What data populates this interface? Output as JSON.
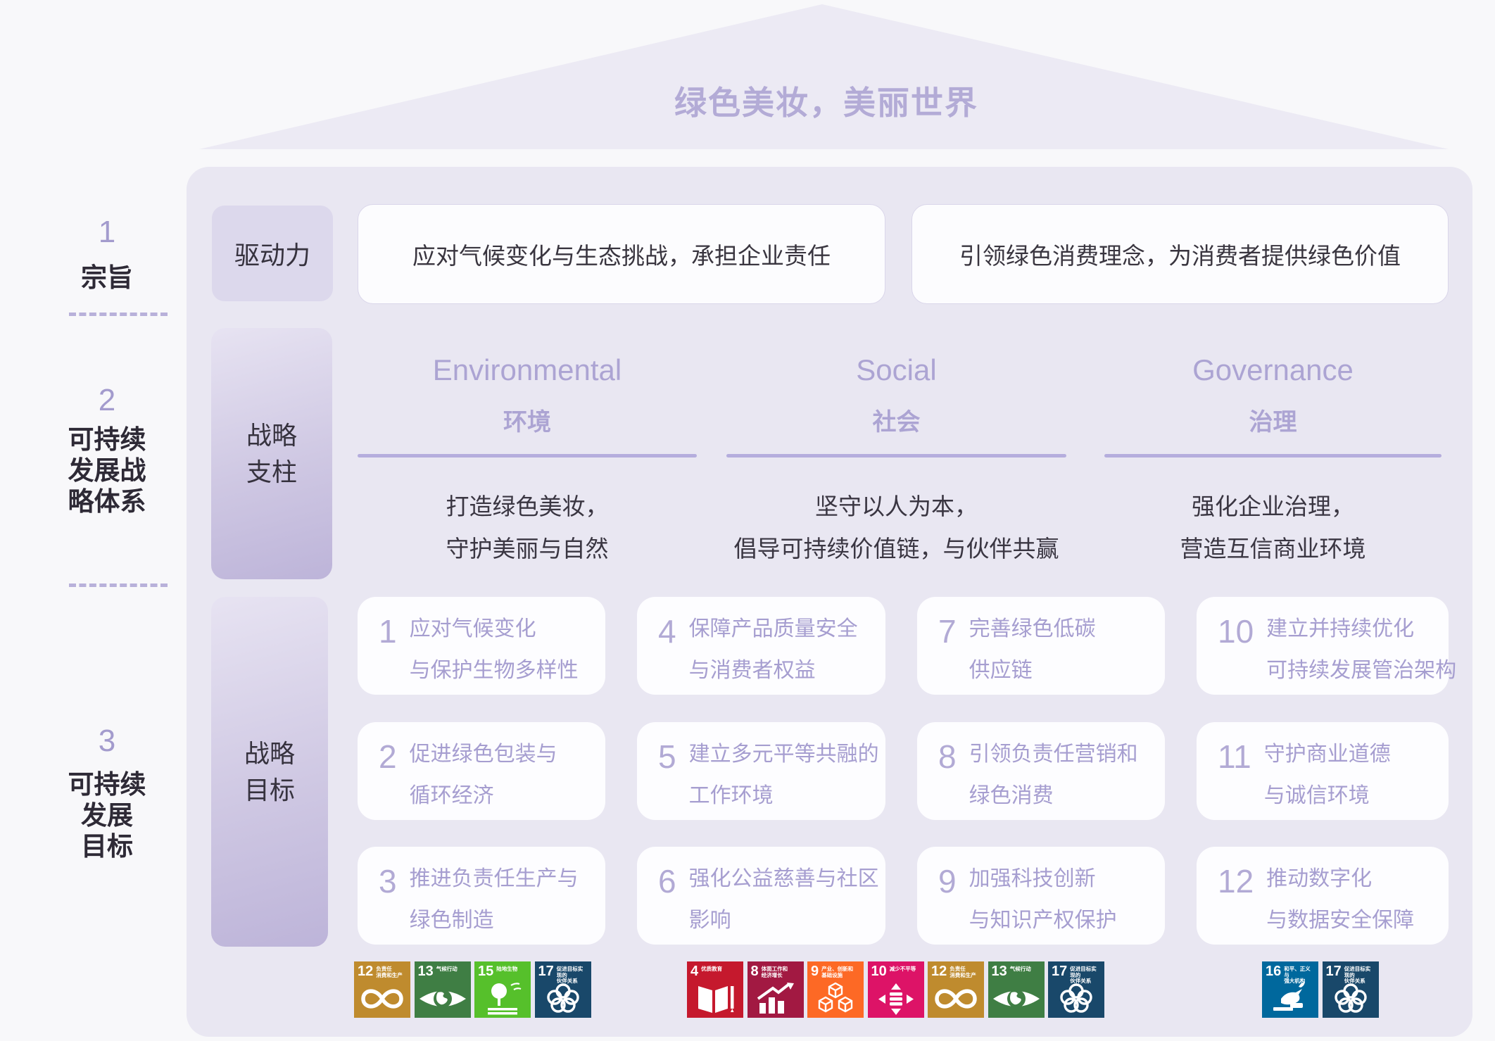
{
  "title": "绿色美妆，美丽世界",
  "colors": {
    "page_bg": "#F8F8FA",
    "roof_bg": "#ECEAF4",
    "panel_bg": "#E9E7F2",
    "label_box_bg": "#DCD8EC",
    "gradient_box_bottom": "#BDB4D9",
    "card_bg": "#FCFCFE",
    "accent_purple": "#ACA4D3",
    "dark_text": "#39353F"
  },
  "rail": {
    "sections": [
      {
        "num": "1",
        "label_lines": [
          "宗旨"
        ]
      },
      {
        "num": "2",
        "label_lines": [
          "可持续",
          "发展战",
          "略体系"
        ]
      },
      {
        "num": "3",
        "label_lines": [
          "可持续",
          "发展",
          "目标"
        ]
      }
    ]
  },
  "driver": {
    "label": "驱动力",
    "cards": [
      "应对气候变化与生态挑战，承担企业责任",
      "引领绿色消费理念，为消费者提供绿色价值"
    ]
  },
  "pillars": {
    "label_lines": [
      "战略",
      "支柱"
    ],
    "columns": [
      {
        "en": "Environmental",
        "zh": "环境",
        "desc_lines": [
          "打造绿色美妆，",
          "守护美丽与自然"
        ]
      },
      {
        "en": "Social",
        "zh": "社会",
        "desc_lines": [
          "坚守以人为本，",
          "倡导可持续价值链，与伙伴共赢"
        ]
      },
      {
        "en": "Governance",
        "zh": "治理",
        "desc_lines": [
          "强化企业治理，",
          "营造互信商业环境"
        ]
      }
    ]
  },
  "goals": {
    "label_lines": [
      "战略",
      "目标"
    ],
    "items": [
      {
        "num": "1",
        "lines": [
          "应对气候变化",
          "与保护生物多样性"
        ]
      },
      {
        "num": "2",
        "lines": [
          "促进绿色包装与",
          "循环经济"
        ]
      },
      {
        "num": "3",
        "lines": [
          "推进负责任生产与",
          "绿色制造"
        ]
      },
      {
        "num": "4",
        "lines": [
          "保障产品质量安全",
          "与消费者权益"
        ]
      },
      {
        "num": "5",
        "lines": [
          "建立多元平等共融的",
          "工作环境"
        ]
      },
      {
        "num": "6",
        "lines": [
          "强化公益慈善与社区",
          "影响"
        ]
      },
      {
        "num": "7",
        "lines": [
          "完善绿色低碳",
          "供应链"
        ]
      },
      {
        "num": "8",
        "lines": [
          "引领负责任营销和",
          "绿色消费"
        ]
      },
      {
        "num": "9",
        "lines": [
          "加强科技创新",
          "与知识产权保护"
        ]
      },
      {
        "num": "10",
        "lines": [
          "建立并持续优化",
          "可持续发展管治架构"
        ]
      },
      {
        "num": "11",
        "lines": [
          "守护商业道德",
          "与诚信环境"
        ]
      },
      {
        "num": "12",
        "lines": [
          "推动数字化",
          "与数据安全保障"
        ]
      }
    ]
  },
  "sdg": {
    "groups": [
      {
        "name": "environmental-sdgs",
        "icons": [
          {
            "num": "12",
            "label_lines": [
              "负责任",
              "消费和生产"
            ],
            "color": "#BF8B2E",
            "icon": "infinity-loop-icon"
          },
          {
            "num": "13",
            "label_lines": [
              "气候行动"
            ],
            "color": "#3F7E44",
            "icon": "eye-globe-icon"
          },
          {
            "num": "15",
            "label_lines": [
              "陆地生物"
            ],
            "color": "#56C02B",
            "icon": "tree-icon"
          },
          {
            "num": "17",
            "label_lines": [
              "促进目标实现的",
              "伙伴关系"
            ],
            "color": "#19486A",
            "icon": "rings-icon"
          }
        ]
      },
      {
        "name": "social-sdgs",
        "icons": [
          {
            "num": "4",
            "label_lines": [
              "优质教育"
            ],
            "color": "#C5192D",
            "icon": "book-icon"
          },
          {
            "num": "8",
            "label_lines": [
              "体面工作和",
              "经济增长"
            ],
            "color": "#A21942",
            "icon": "growth-chart-icon"
          },
          {
            "num": "9",
            "label_lines": [
              "产业、创新和",
              "基础设施"
            ],
            "color": "#FD6925",
            "icon": "cubes-icon"
          },
          {
            "num": "10",
            "label_lines": [
              "减少不平等"
            ],
            "color": "#DD1367",
            "icon": "equality-icon"
          },
          {
            "num": "12",
            "label_lines": [
              "负责任",
              "消费和生产"
            ],
            "color": "#BF8B2E",
            "icon": "infinity-loop-icon"
          },
          {
            "num": "13",
            "label_lines": [
              "气候行动"
            ],
            "color": "#3F7E44",
            "icon": "eye-globe-icon"
          },
          {
            "num": "17",
            "label_lines": [
              "促进目标实现的",
              "伙伴关系"
            ],
            "color": "#19486A",
            "icon": "rings-icon"
          }
        ]
      },
      {
        "name": "governance-sdgs",
        "icons": [
          {
            "num": "16",
            "label_lines": [
              "和平、正义与",
              "强大机构"
            ],
            "color": "#00689D",
            "icon": "dove-gavel-icon"
          },
          {
            "num": "17",
            "label_lines": [
              "促进目标实现的",
              "伙伴关系"
            ],
            "color": "#19486A",
            "icon": "rings-icon"
          }
        ]
      }
    ]
  }
}
